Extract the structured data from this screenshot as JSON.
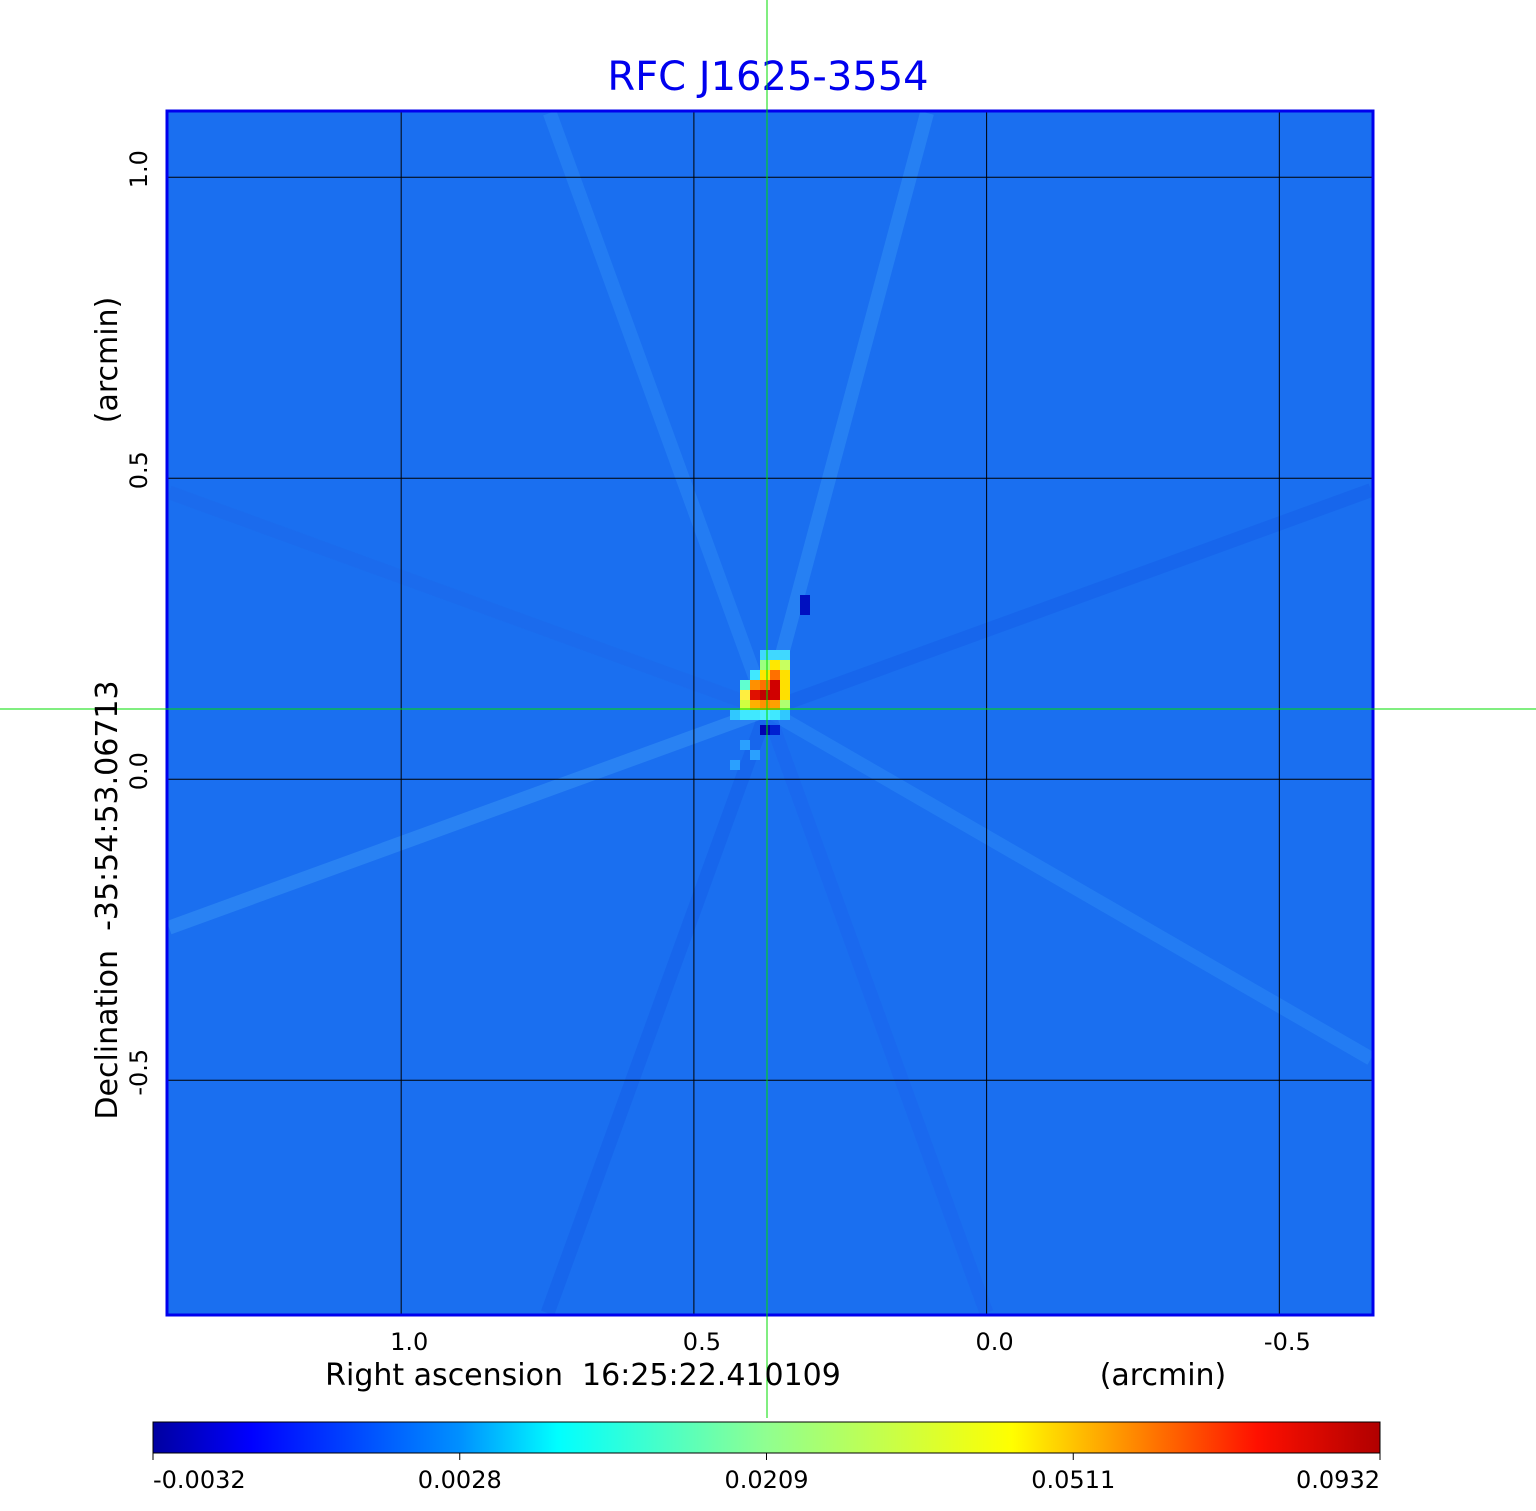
{
  "chart_data": {
    "type": "heatmap",
    "title": "RFC J1625-3554",
    "xlabel": "Right ascension  16:25:22.410109",
    "xunit": "(arcmin)",
    "ylabel": "Declination  -35:54:53.06713",
    "yunit": "(arcmin)",
    "x_ticks": [
      "1.0",
      "0.5",
      "0.0",
      "-0.5"
    ],
    "x_tick_values": [
      1.0,
      0.5,
      0.0,
      -0.5
    ],
    "y_ticks": [
      "1.0",
      "0.5",
      "0.0",
      "-0.5"
    ],
    "y_tick_values": [
      1.0,
      0.5,
      0.0,
      -0.5
    ],
    "xlim": [
      1.4,
      -0.66
    ],
    "ylim": [
      -0.89,
      1.11
    ],
    "grid": true,
    "colormap": "jet",
    "colorbar": {
      "placement": "bottom",
      "ticks": [
        "-0.0032",
        "0.0028",
        "0.0209",
        "0.0511",
        "0.0932"
      ],
      "range": [
        -0.0032,
        0.0932
      ]
    },
    "peak": {
      "x": 0.37,
      "y": 0.12,
      "value": 0.0932
    },
    "crosshair": {
      "x": 0.375,
      "y": 0.115
    },
    "colors": {
      "title": "#0000ee",
      "frame": "#0000ee",
      "crosshair": "#00dd00",
      "background": "#1a6ff0"
    }
  }
}
